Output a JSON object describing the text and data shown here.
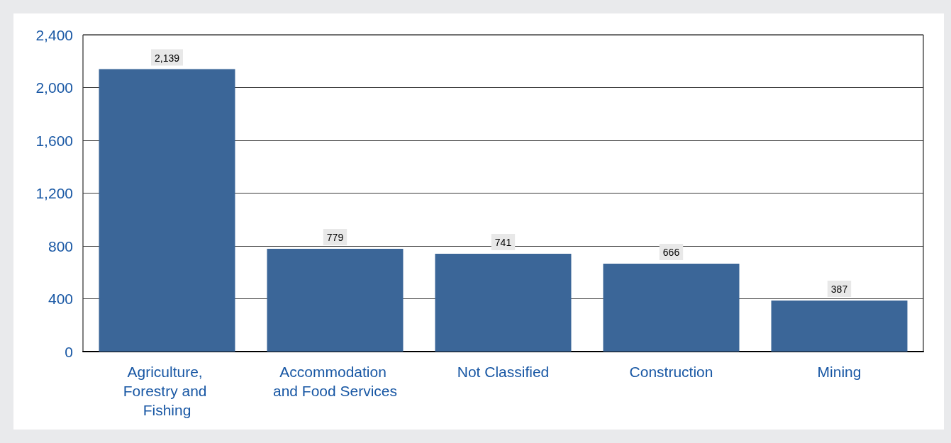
{
  "chart_data": {
    "type": "bar",
    "categories": [
      "Agriculture, Forestry and Fishing",
      "Accommodation and Food Services",
      "Not Classified",
      "Construction",
      "Mining"
    ],
    "values": [
      2139,
      779,
      741,
      666,
      387
    ],
    "value_labels": [
      "2,139",
      "779",
      "741",
      "666",
      "387"
    ],
    "color": "#3b6698",
    "ylim": [
      0,
      2400
    ],
    "yticks": [
      {
        "value": 0,
        "label": "0"
      },
      {
        "value": 400,
        "label": "400"
      },
      {
        "value": 800,
        "label": "800"
      },
      {
        "value": 1200,
        "label": "1,200"
      },
      {
        "value": 1600,
        "label": "1,600"
      },
      {
        "value": 2000,
        "label": "2,000"
      },
      {
        "value": 2400,
        "label": "2,400"
      }
    ],
    "grid": "y"
  }
}
